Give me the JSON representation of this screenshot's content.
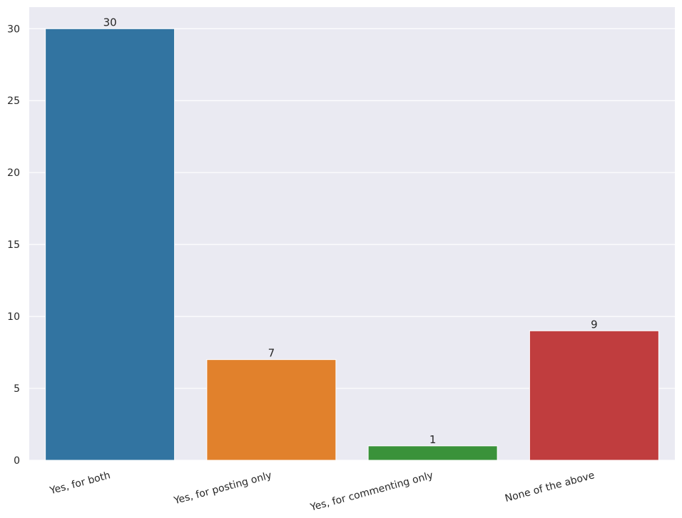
{
  "chart_data": {
    "type": "bar",
    "categories": [
      "Yes, for both",
      "Yes, for posting only",
      "Yes, for commenting only",
      "None of the above"
    ],
    "values": [
      30,
      7,
      1,
      9
    ],
    "colors": [
      "#3274a1",
      "#e1812c",
      "#3a923a",
      "#c03d3e"
    ],
    "ylim": [
      0,
      31.5
    ],
    "yticks": [
      0,
      5,
      10,
      15,
      20,
      25,
      30
    ],
    "grid": true
  }
}
